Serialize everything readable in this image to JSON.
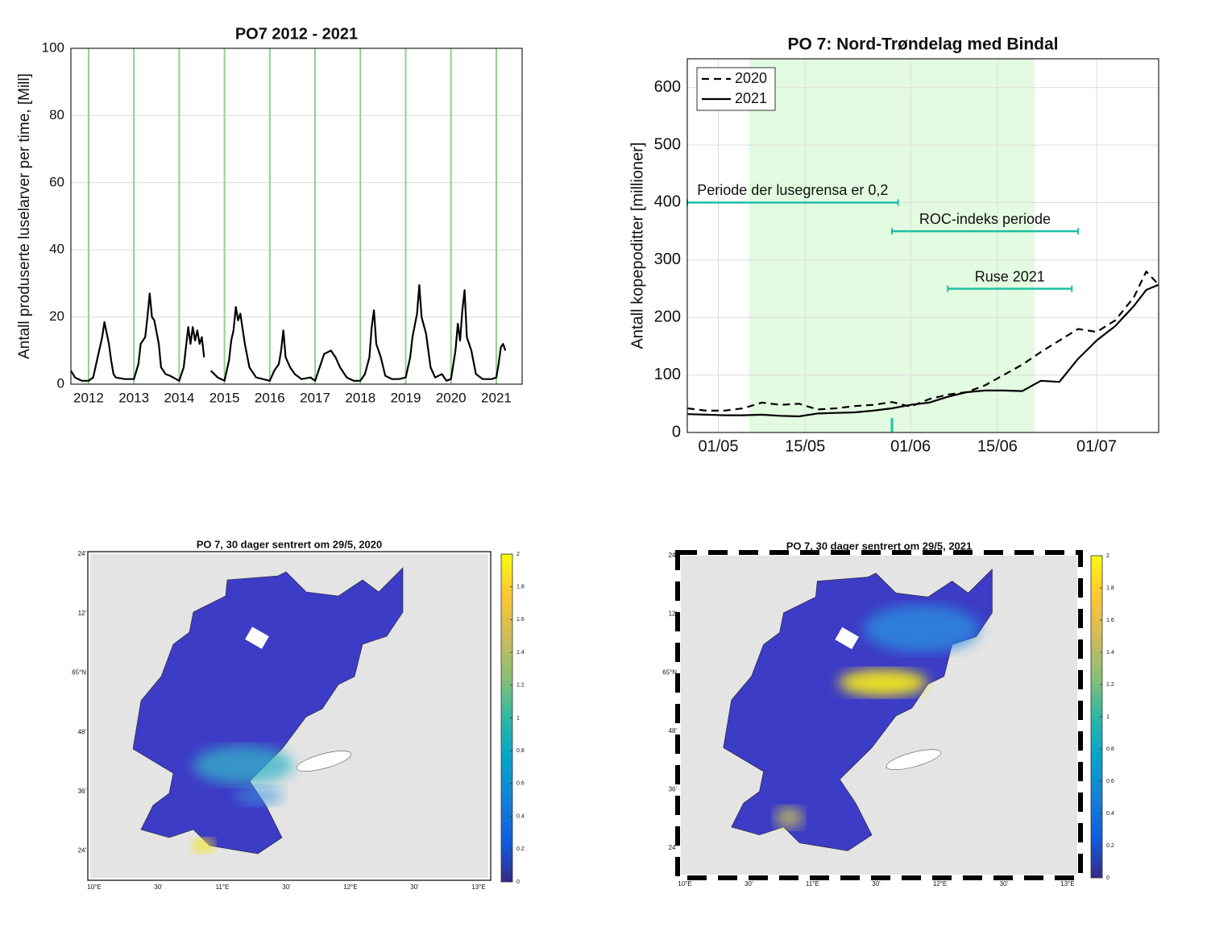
{
  "chart_data": [
    {
      "type": "line",
      "title": "PO7 2012 - 2021",
      "ylabel": "Antall produserte luselarver per time, [Mill]",
      "x": [
        2011.61,
        2011.7,
        2011.85,
        2012.0,
        2012.1,
        2012.2,
        2012.3,
        2012.35,
        2012.45,
        2012.5,
        2012.55,
        2012.6,
        2012.8,
        2013.0,
        2013.1,
        2013.15,
        2013.25,
        2013.3,
        2013.35,
        2013.4,
        2013.45,
        2013.55,
        2013.6,
        2013.7,
        2013.8,
        2014.0,
        2014.1,
        2014.15,
        2014.2,
        2014.25,
        2014.3,
        2014.35,
        2014.4,
        2014.45,
        2014.5,
        2014.55,
        2014.6,
        2014.7,
        2014.85,
        2015.0,
        2015.1,
        2015.15,
        2015.2,
        2015.25,
        2015.3,
        2015.35,
        2015.45,
        2015.55,
        2015.7,
        2015.85,
        2016.0,
        2016.1,
        2016.2,
        2016.25,
        2016.3,
        2016.35,
        2016.45,
        2016.55,
        2016.7,
        2016.9,
        2017.0,
        2017.1,
        2017.2,
        2017.35,
        2017.45,
        2017.55,
        2017.7,
        2017.85,
        2018.0,
        2018.1,
        2018.2,
        2018.25,
        2018.3,
        2018.35,
        2018.45,
        2018.55,
        2018.7,
        2018.85,
        2019.0,
        2019.1,
        2019.15,
        2019.25,
        2019.3,
        2019.35,
        2019.45,
        2019.55,
        2019.65,
        2019.8,
        2019.9,
        2020.0,
        2020.1,
        2020.15,
        2020.2,
        2020.25,
        2020.3,
        2020.35,
        2020.45,
        2020.55,
        2020.7,
        2020.9,
        2021.0,
        2021.05,
        2021.1,
        2021.15,
        2021.2
      ],
      "series": [
        {
          "color": "#000000",
          "linestyle": "solid",
          "values": [
            4,
            2,
            1,
            1,
            2,
            8,
            14,
            18.5,
            12,
            7,
            3,
            2,
            1.5,
            1.5,
            6,
            12,
            14,
            20,
            27,
            20,
            19,
            12,
            5,
            3,
            2.5,
            1,
            5,
            11,
            17,
            12,
            17,
            13,
            16,
            12,
            14,
            8,
            null,
            4,
            2,
            1,
            7,
            13,
            16,
            23,
            19,
            21,
            12,
            5,
            2,
            1.5,
            1,
            4,
            6,
            10,
            16,
            8,
            5,
            3,
            1.5,
            2,
            1,
            5,
            9,
            10,
            8,
            5,
            2,
            1,
            1,
            3,
            8,
            17,
            22,
            12,
            8,
            2.5,
            1.5,
            1.5,
            2,
            8,
            14,
            21,
            29.5,
            20,
            15,
            5,
            2,
            3,
            1,
            1.5,
            10,
            18,
            13,
            22,
            28,
            14,
            10,
            3,
            1.5,
            1.5,
            2,
            6,
            11,
            12,
            10
          ]
        }
      ],
      "xlim": [
        2011.61,
        2021.57
      ],
      "xticks": [
        2012,
        2013,
        2014,
        2015,
        2016,
        2017,
        2018,
        2019,
        2020,
        2021
      ],
      "ylim": [
        0,
        100
      ],
      "yticks": [
        0,
        20,
        40,
        60,
        80,
        100
      ],
      "grid": true,
      "xgrid_color": "#8fd18f"
    },
    {
      "type": "line",
      "title": "PO 7: Nord-Trøndelag med Bindal",
      "ylabel": "Antall kopepoditter [millioner]",
      "x": [
        "26/04",
        "29/04",
        "02/05",
        "05/05",
        "08/05",
        "11/05",
        "14/05",
        "17/05",
        "20/05",
        "23/05",
        "26/05",
        "29/05",
        "01/06",
        "04/06",
        "07/06",
        "10/06",
        "13/06",
        "16/06",
        "19/06",
        "22/06",
        "25/06",
        "28/06",
        "01/07",
        "04/07",
        "07/07",
        "09/07",
        "11/07"
      ],
      "series": [
        {
          "name": "2020",
          "color": "#000000",
          "linestyle": "dashed",
          "values": [
            42,
            38,
            38,
            42,
            52,
            48,
            50,
            40,
            42,
            46,
            48,
            53,
            45,
            58,
            66,
            70,
            82,
            100,
            118,
            140,
            160,
            180,
            175,
            195,
            235,
            280,
            257
          ]
        },
        {
          "name": "2021",
          "color": "#000000",
          "linestyle": "solid",
          "values": [
            32,
            31,
            30,
            30,
            31,
            29,
            28,
            33,
            34,
            35,
            38,
            42,
            48,
            52,
            62,
            70,
            73,
            73,
            72,
            90,
            88,
            128,
            160,
            185,
            220,
            248,
            257
          ]
        }
      ],
      "xlim": [
        "26/04",
        "11/07"
      ],
      "xticks": [
        "01/05",
        "15/05",
        "01/06",
        "15/06",
        "01/07"
      ],
      "ylim": [
        0,
        650
      ],
      "yticks": [
        0,
        100,
        200,
        300,
        400,
        500,
        600
      ],
      "grid": true,
      "legend": "upper left",
      "span": [
        "06/05",
        "21/06"
      ],
      "span_color": "#e3fbe0",
      "annotation_color": "#1dbfa5",
      "annotations": [
        {
          "text": "Periode der lusegrensa er 0,2",
          "x": [
            "26/04",
            "30/05"
          ],
          "y": 400
        },
        {
          "text": "ROC-indeks periode",
          "x": [
            "29/05",
            "28/06"
          ],
          "y": 350
        },
        {
          "text": "Ruse 2021",
          "x": [
            "07/06",
            "27/06"
          ],
          "y": 250
        }
      ],
      "marker": {
        "x": "29/05",
        "y": [
          0,
          25
        ]
      }
    },
    {
      "type": "map",
      "title": "PO 7, 30 dager sentrert om 29/5, 2020",
      "lat_labels": [
        "24'",
        "12'",
        "65°N",
        "48'",
        "36'",
        "24'"
      ],
      "lon_labels": [
        "10°E",
        "30'",
        "11°E",
        "30'",
        "12°E",
        "30'",
        "13°E"
      ],
      "clim": [
        0,
        2
      ],
      "colorbar_ticks": [
        0,
        0.2,
        0.4,
        0.6,
        0.8,
        1,
        1.2,
        1.4,
        1.6,
        1.8,
        2
      ],
      "colormap": "parula",
      "frame": "plain"
    },
    {
      "type": "map",
      "title": "PO 7, 30 dager sentrert om 29/5, 2021",
      "lat_labels": [
        "24'",
        "12'",
        "65°N",
        "48'",
        "36'",
        "24'"
      ],
      "lon_labels": [
        "10°E",
        "30'",
        "11°E",
        "30'",
        "12°E",
        "30'",
        "13°E"
      ],
      "clim": [
        0,
        2
      ],
      "colorbar_ticks": [
        0,
        0.2,
        0.4,
        0.6,
        0.8,
        1,
        1.2,
        1.4,
        1.6,
        1.8,
        2
      ],
      "colormap": "parula",
      "frame": "dashed"
    }
  ]
}
